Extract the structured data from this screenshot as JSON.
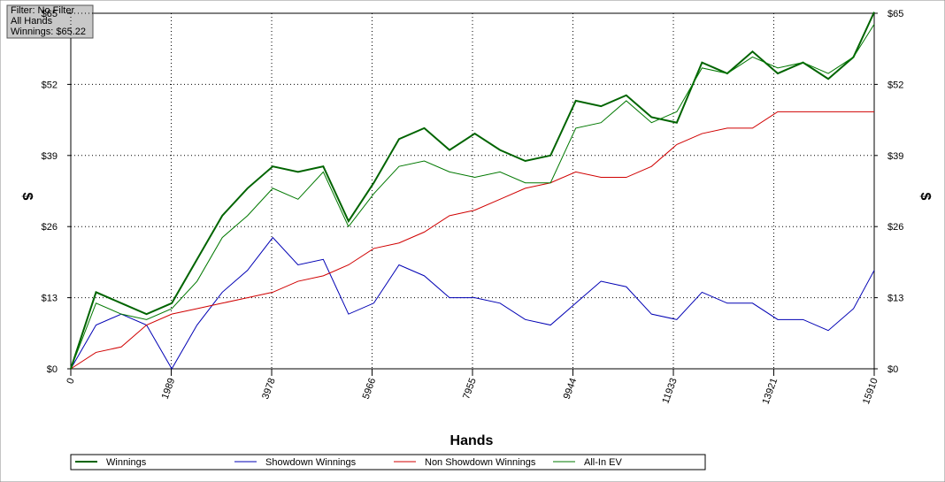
{
  "info": [
    "Filter: No Filter",
    "All Hands",
    "Winnings: $65.22"
  ],
  "chart_data": {
    "type": "line",
    "xlabel": "Hands",
    "ylabel": "$",
    "y2label": "$",
    "x": [
      0,
      500,
      1000,
      1500,
      2000,
      2500,
      3000,
      3500,
      4000,
      4500,
      5000,
      5500,
      6000,
      6500,
      7000,
      7500,
      8000,
      8500,
      9000,
      9500,
      10000,
      10500,
      11000,
      11500,
      12000,
      12500,
      13000,
      13500,
      14000,
      14500,
      15000,
      15500,
      15910
    ],
    "series": [
      {
        "name": "Winnings",
        "color": "#006400",
        "line_width": 2,
        "values": [
          0,
          14,
          12,
          10,
          12,
          20,
          28,
          33,
          37,
          36,
          37,
          27,
          34,
          42,
          44,
          40,
          43,
          40,
          38,
          39,
          49,
          48,
          50,
          46,
          45,
          56,
          54,
          58,
          54,
          56,
          53,
          57,
          65.22
        ]
      },
      {
        "name": "Showdown Winnings",
        "color": "#0000b4",
        "line_width": 1,
        "values": [
          0,
          8,
          10,
          8,
          0,
          8,
          14,
          18,
          24,
          19,
          20,
          10,
          12,
          19,
          17,
          13,
          13,
          12,
          9,
          8,
          12,
          16,
          15,
          10,
          9,
          14,
          12,
          12,
          9,
          9,
          7,
          11,
          18
        ]
      },
      {
        "name": "Non Showdown Winnings",
        "color": "#d00000",
        "line_width": 1,
        "values": [
          0,
          3,
          4,
          8,
          10,
          11,
          12,
          13,
          14,
          16,
          17,
          19,
          22,
          23,
          25,
          28,
          29,
          31,
          33,
          34,
          36,
          35,
          35,
          37,
          41,
          43,
          44,
          44,
          47,
          47,
          47,
          47,
          47
        ]
      },
      {
        "name": "All-In EV",
        "color": "#007800",
        "line_width": 1,
        "values": [
          0,
          12,
          10,
          9,
          11,
          16,
          24,
          28,
          33,
          31,
          36,
          26,
          32,
          37,
          38,
          36,
          35,
          36,
          34,
          34,
          44,
          45,
          49,
          45,
          47,
          55,
          54,
          57,
          55,
          56,
          54,
          57,
          63
        ]
      }
    ],
    "xlim": [
      0,
      15910
    ],
    "xticks": [
      0,
      1989,
      3978,
      5966,
      7955,
      9944,
      11933,
      13921,
      15910
    ],
    "ylim": [
      0,
      65
    ],
    "yticks": [
      {
        "value": 0,
        "label": "$0"
      },
      {
        "value": 13,
        "label": "$13"
      },
      {
        "value": 26,
        "label": "$26"
      },
      {
        "value": 39,
        "label": "$39"
      },
      {
        "value": 52,
        "label": "$52"
      },
      {
        "value": 65,
        "label": "$65"
      }
    ],
    "grid": true
  }
}
